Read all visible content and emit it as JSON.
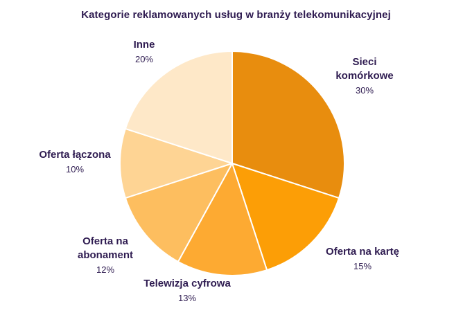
{
  "title": "Kategorie reklamowanych usług w branży telekomunikacyjnej",
  "colors": {
    "background": "#FFFFFF",
    "title_text": "#2F1C51",
    "label_text": "#2F1C51",
    "slice_border": "#FFFFFF"
  },
  "chart_data": {
    "type": "pie",
    "title": "Kategorie reklamowanych usług w branży telekomunikacyjnej",
    "start_angle_deg": 0,
    "direction": "clockwise",
    "legend_position": "none",
    "labels_position": "outside",
    "units": "percent",
    "slices": [
      {
        "label": "Sieci komórkowe",
        "value": 30,
        "pct_label": "30%",
        "color": "#E88D0E"
      },
      {
        "label": "Oferta na kartę",
        "value": 15,
        "pct_label": "15%",
        "color": "#FC9E06"
      },
      {
        "label": "Telewizja cyfrowa",
        "value": 13,
        "pct_label": "13%",
        "color": "#FDAA32"
      },
      {
        "label": "Oferta na abonament",
        "value": 12,
        "pct_label": "12%",
        "color": "#FDBE5F"
      },
      {
        "label": "Oferta łączona",
        "value": 10,
        "pct_label": "10%",
        "color": "#FED494"
      },
      {
        "label": "Inne",
        "value": 20,
        "pct_label": "20%",
        "color": "#FEE8C8"
      }
    ]
  }
}
